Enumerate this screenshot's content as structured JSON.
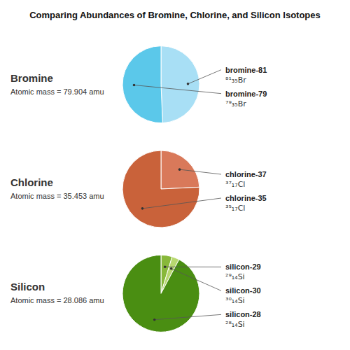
{
  "title": "Comparing Abundances of Bromine, Chlorine, and Silicon Isotopes",
  "chart_data": [
    {
      "type": "pie",
      "title": "Bromine",
      "subtitle": "Atomic mass = 79.904 amu",
      "categories": [
        "bromine-81",
        "bromine-79"
      ],
      "annotations": [
        "⁸¹₃₅Br",
        "⁷⁹₃₅Br"
      ],
      "values": [
        49.31,
        50.69
      ],
      "colors": [
        "#a8dff5",
        "#5bc8ea"
      ]
    },
    {
      "type": "pie",
      "title": "Chlorine",
      "subtitle": "Atomic mass = 35.453 amu",
      "categories": [
        "chlorine-37",
        "chlorine-35"
      ],
      "annotations": [
        "³⁷₁₇Cl",
        "³⁵₁₇Cl"
      ],
      "values": [
        24.23,
        75.77
      ],
      "colors": [
        "#d9795a",
        "#c9623a"
      ]
    },
    {
      "type": "pie",
      "title": "Silicon",
      "subtitle": "Atomic mass = 28.086 amu",
      "categories": [
        "silicon-29",
        "silicon-30",
        "silicon-28"
      ],
      "annotations": [
        "²⁹₁₄Si",
        "³⁰₁₄Si",
        "²⁸₁₄Si"
      ],
      "values": [
        4.67,
        3.1,
        92.23
      ],
      "colors": [
        "#88b83a",
        "#b8d870",
        "#4a8e12"
      ]
    }
  ]
}
